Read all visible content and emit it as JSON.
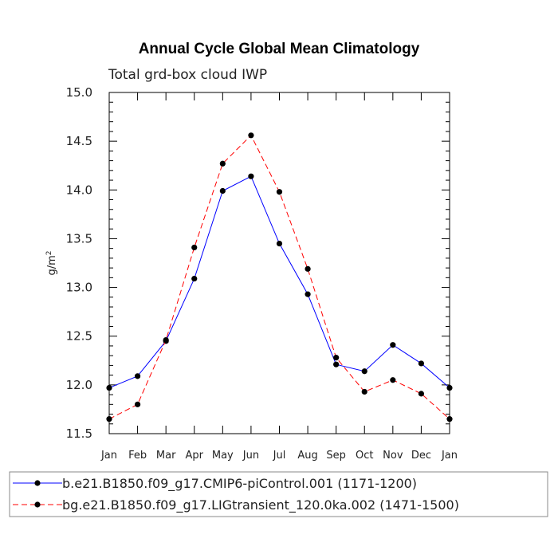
{
  "chart_data": {
    "type": "line",
    "title": "Annual Cycle Global Mean Climatology",
    "subtitle": "Total grd-box cloud IWP",
    "ylabel": "g/m",
    "ylabel_superscript": "2",
    "xlabel": "",
    "ylim": [
      11.5,
      15.0
    ],
    "yticks": [
      "11.5",
      "12.0",
      "12.5",
      "13.0",
      "13.5",
      "14.0",
      "14.5",
      "15.0"
    ],
    "categories": [
      "Jan",
      "Feb",
      "Mar",
      "Apr",
      "May",
      "Jun",
      "Jul",
      "Aug",
      "Sep",
      "Oct",
      "Nov",
      "Dec",
      "Jan"
    ],
    "grid": false,
    "legend_position": "bottom",
    "series": [
      {
        "name": "b.e21.B1850.f09_g17.CMIP6-piControl.001 (1171-1200)",
        "color": "#0000ff",
        "dash": "solid",
        "values": [
          11.97,
          12.09,
          12.45,
          13.09,
          13.99,
          14.14,
          13.45,
          12.93,
          12.21,
          12.14,
          12.41,
          12.22,
          11.97
        ]
      },
      {
        "name": "bg.e21.B1850.f09_g17.LIGtransient_120.0ka.002 (1471-1500)",
        "color": "#ff0000",
        "dash": "dashed",
        "values": [
          11.65,
          11.8,
          12.46,
          13.41,
          14.27,
          14.56,
          13.98,
          13.19,
          12.28,
          11.93,
          12.05,
          11.91,
          11.65
        ]
      }
    ]
  }
}
